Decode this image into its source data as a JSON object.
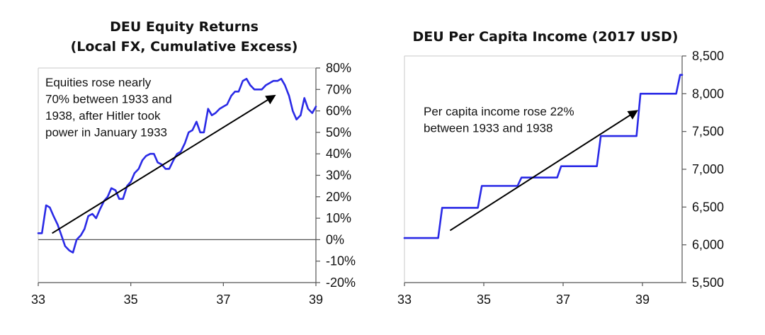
{
  "chart_data": [
    {
      "type": "line",
      "title": "DEU Equity Returns",
      "subtitle": "(Local FX, Cumulative Excess)",
      "xlabel": "",
      "ylabel": "",
      "xlim": [
        33,
        39
      ],
      "ylim": [
        -20,
        80
      ],
      "x_ticks": [
        "33",
        "35",
        "37",
        "39"
      ],
      "y_ticks": [
        "80%",
        "70%",
        "60%",
        "50%",
        "40%",
        "30%",
        "20%",
        "10%",
        "0%",
        "-10%",
        "-20%"
      ],
      "y_axis_side": "right",
      "grid": false,
      "legend": "none",
      "line_color": "#2a2ae6",
      "annotation": [
        "Equities rose nearly",
        "70% between 1933 and",
        "1938, after Hitler took",
        "power in January 1933"
      ],
      "arrow": {
        "from": [
          33.3,
          3
        ],
        "to": [
          38.1,
          67
        ]
      },
      "series": [
        {
          "x": [
            33.0,
            33.08,
            33.17,
            33.25,
            33.33,
            33.42,
            33.5,
            33.58,
            33.67,
            33.75,
            33.83,
            33.92,
            34.0,
            34.08,
            34.17,
            34.25,
            34.33,
            34.42,
            34.5,
            34.58,
            34.67,
            34.75,
            34.83,
            34.92,
            35.0,
            35.08,
            35.17,
            35.25,
            35.33,
            35.42,
            35.5,
            35.58,
            35.67,
            35.75,
            35.83,
            35.92,
            36.0,
            36.08,
            36.17,
            36.25,
            36.33,
            36.42,
            36.5,
            36.58,
            36.67,
            36.75,
            36.83,
            36.92,
            37.0,
            37.08,
            37.17,
            37.25,
            37.33,
            37.42,
            37.5,
            37.58,
            37.67,
            37.75,
            37.83,
            37.92,
            38.0,
            38.08,
            38.17,
            38.25,
            38.33,
            38.42,
            38.5,
            38.58,
            38.67,
            38.75,
            38.83,
            38.92,
            39.0
          ],
          "y": [
            3,
            3,
            16,
            15,
            11,
            7,
            2,
            -3,
            -5,
            -6,
            0,
            2,
            5,
            11,
            12,
            10,
            14,
            18,
            20,
            24,
            23,
            19,
            19,
            25,
            27,
            31,
            33,
            37,
            39,
            40,
            40,
            36,
            35,
            33,
            33,
            37,
            40,
            41,
            45,
            50,
            51,
            55,
            50,
            50,
            61,
            58,
            59,
            61,
            62,
            63,
            67,
            69,
            69,
            74,
            75,
            72,
            70,
            70,
            70,
            72,
            73,
            74,
            74,
            75,
            72,
            67,
            60,
            56,
            58,
            66,
            61,
            59,
            62
          ]
        }
      ]
    },
    {
      "type": "line",
      "title": "DEU Per Capita Income (2017 USD)",
      "xlabel": "",
      "ylabel": "",
      "xlim": [
        33,
        40
      ],
      "ylim": [
        5500,
        8500
      ],
      "x_ticks": [
        "33",
        "35",
        "37",
        "39"
      ],
      "y_ticks": [
        "8,500",
        "8,000",
        "7,500",
        "7,000",
        "6,500",
        "6,000",
        "5,500"
      ],
      "y_axis_side": "right",
      "grid": false,
      "legend": "none",
      "line_color": "#2a2ae6",
      "annotation": [
        "Per capita income rose 22%",
        "between 1933 and 1938"
      ],
      "arrow": {
        "from": [
          34.15,
          6190
        ],
        "to": [
          38.85,
          7770
        ]
      },
      "series": [
        {
          "x": [
            33.0,
            33.85,
            33.95,
            34.85,
            34.95,
            35.85,
            35.95,
            36.85,
            36.95,
            37.85,
            37.95,
            38.85,
            38.95,
            39.85,
            39.95,
            40.0
          ],
          "y": [
            6090,
            6090,
            6490,
            6490,
            6780,
            6780,
            6890,
            6890,
            7040,
            7040,
            7440,
            7440,
            8000,
            8000,
            8250,
            8250
          ]
        }
      ]
    }
  ]
}
